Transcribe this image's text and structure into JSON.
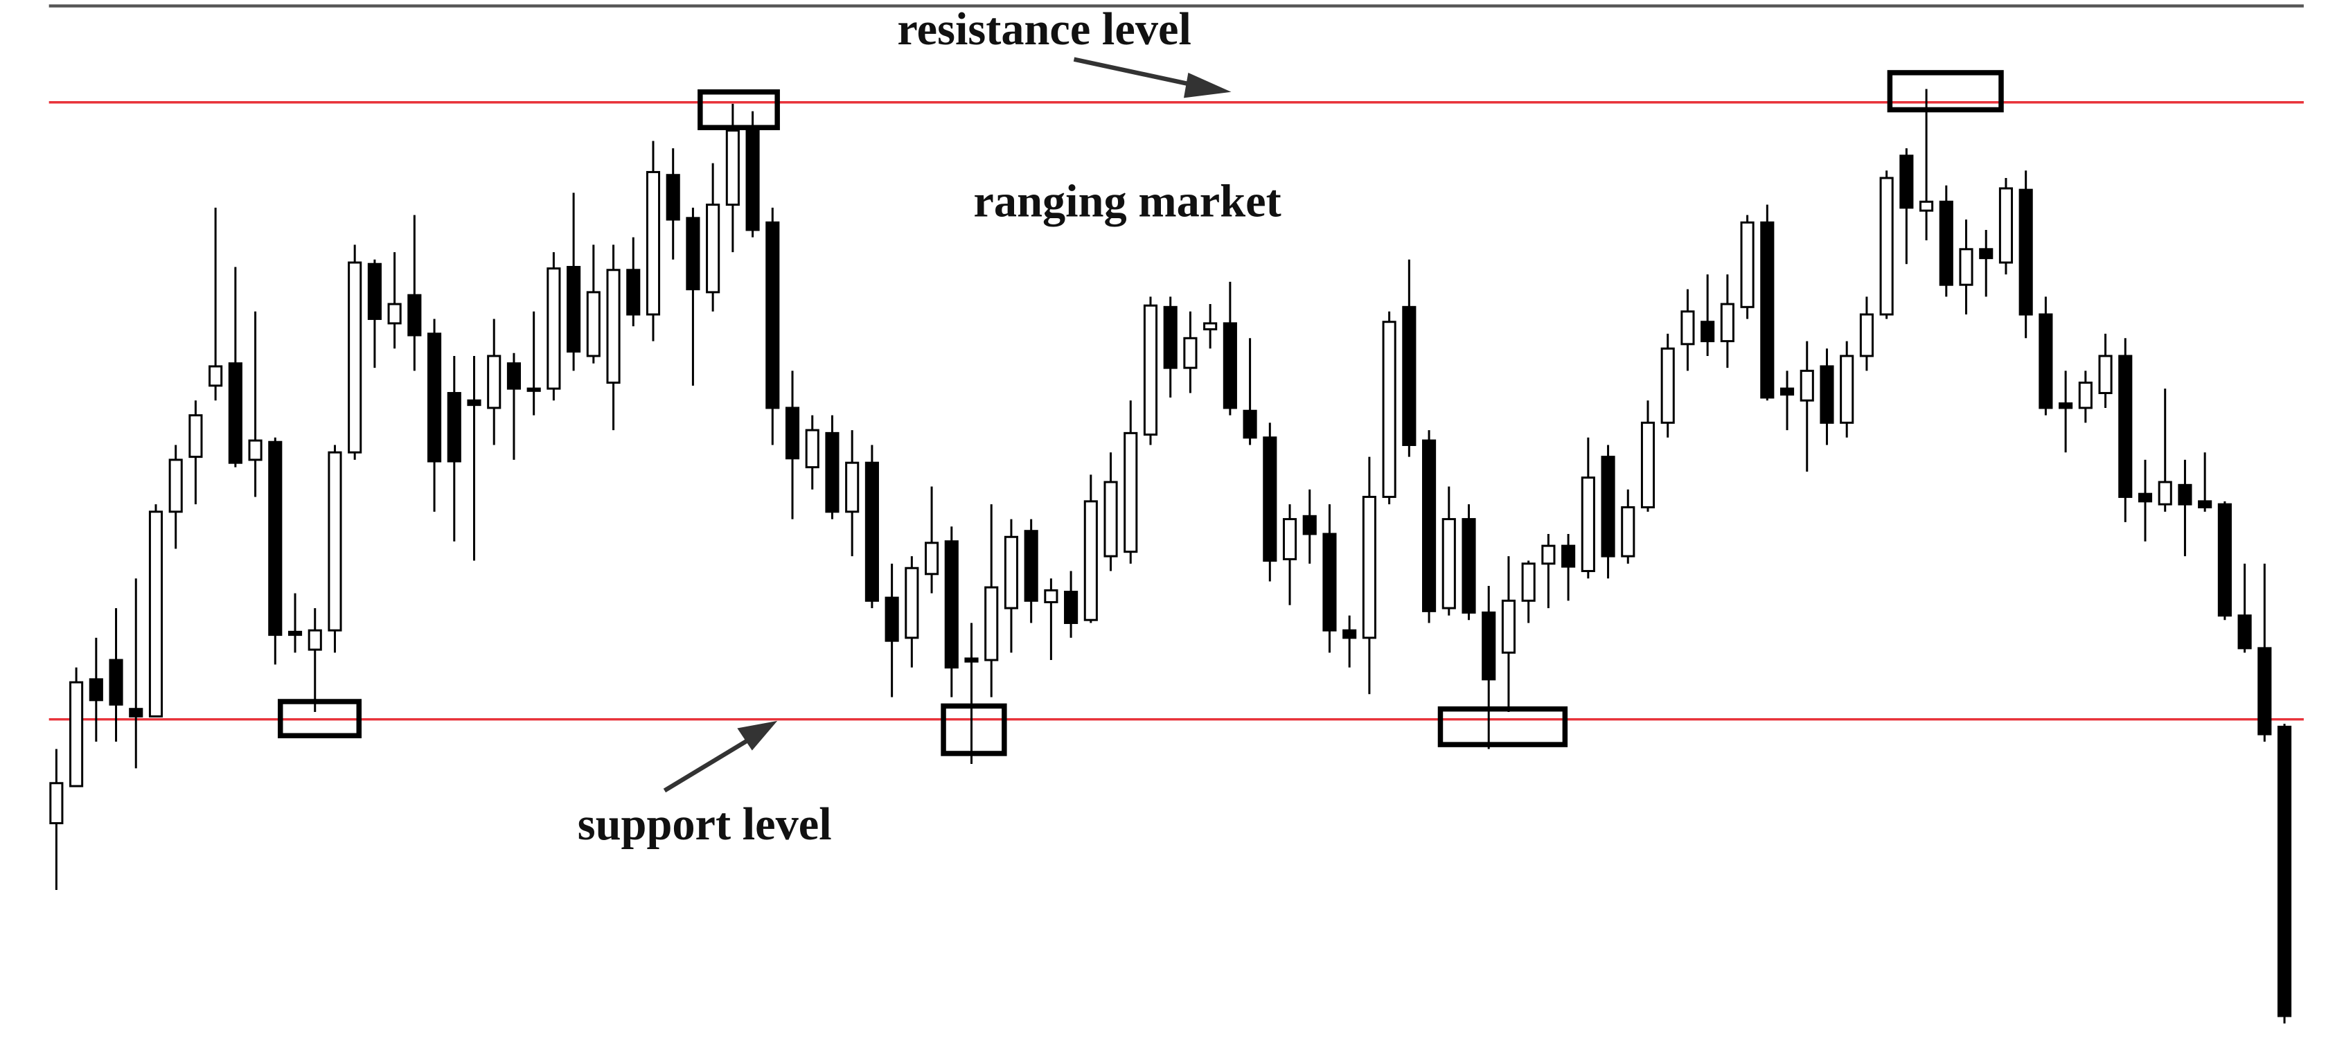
{
  "chart_data": {
    "type": "candlestick",
    "title": "ranging market",
    "ylim": [
      0,
      700
    ],
    "up_color": "#ffffff",
    "down_color": "#000000",
    "wick_color": "#000000",
    "lines": [
      {
        "label": "resistance level",
        "value": 631,
        "color": "#e8333a"
      },
      {
        "label": "support level",
        "value": 215,
        "color": "#e8333a"
      }
    ],
    "open": [
      145,
      170,
      242,
      255,
      222,
      217,
      355,
      392,
      440,
      455,
      390,
      402,
      274,
      262,
      275,
      395,
      522,
      482,
      501,
      475,
      435,
      430,
      425,
      455,
      438,
      438,
      520,
      460,
      442,
      518,
      488,
      582,
      553,
      503,
      562,
      613,
      550,
      425,
      385,
      408,
      355,
      388,
      297,
      270,
      313,
      335,
      256,
      255,
      290,
      342,
      294,
      301,
      282,
      325,
      328,
      407,
      493,
      452,
      478,
      482,
      423,
      405,
      323,
      352,
      340,
      275,
      270,
      365,
      493,
      403,
      290,
      350,
      287,
      260,
      295,
      320,
      332,
      315,
      392,
      325,
      358,
      415,
      468,
      483,
      470,
      493,
      550,
      438,
      430,
      453,
      415,
      460,
      488,
      595,
      558,
      564,
      508,
      532,
      523,
      572,
      488,
      428,
      425,
      435,
      460,
      367,
      360,
      373,
      362,
      360,
      285,
      263,
      210
    ],
    "close": [
      172,
      240,
      228,
      225,
      217,
      355,
      390,
      420,
      453,
      388,
      403,
      272,
      272,
      275,
      395,
      523,
      485,
      495,
      474,
      389,
      389,
      427,
      460,
      438,
      437,
      519,
      463,
      503,
      518,
      488,
      584,
      552,
      505,
      562,
      612,
      545,
      425,
      391,
      410,
      355,
      388,
      295,
      268,
      317,
      334,
      250,
      254,
      304,
      338,
      295,
      302,
      280,
      362,
      375,
      408,
      494,
      452,
      472,
      482,
      425,
      405,
      322,
      350,
      340,
      275,
      270,
      365,
      483,
      400,
      288,
      350,
      287,
      242,
      295,
      320,
      332,
      318,
      378,
      325,
      358,
      415,
      465,
      490,
      470,
      495,
      550,
      432,
      434,
      450,
      415,
      460,
      488,
      580,
      560,
      564,
      508,
      532,
      526,
      573,
      488,
      425,
      425,
      442,
      460,
      365,
      362,
      375,
      360,
      358,
      285,
      263,
      205,
      15
    ],
    "high": [
      195,
      250,
      270,
      290,
      310,
      360,
      400,
      430,
      560,
      520,
      490,
      405,
      300,
      290,
      400,
      535,
      525,
      530,
      555,
      485,
      460,
      460,
      485,
      462,
      490,
      530,
      570,
      535,
      535,
      540,
      605,
      600,
      560,
      590,
      630,
      625,
      560,
      450,
      420,
      420,
      410,
      400,
      320,
      325,
      372,
      345,
      280,
      360,
      350,
      350,
      310,
      315,
      380,
      395,
      430,
      500,
      500,
      490,
      495,
      510,
      472,
      415,
      360,
      370,
      360,
      285,
      392,
      490,
      525,
      410,
      372,
      360,
      305,
      325,
      322,
      340,
      340,
      405,
      400,
      370,
      430,
      475,
      505,
      515,
      515,
      555,
      562,
      450,
      470,
      465,
      470,
      500,
      585,
      600,
      640,
      575,
      552,
      545,
      580,
      585,
      500,
      450,
      450,
      475,
      472,
      390,
      438,
      390,
      395,
      362,
      320,
      320,
      212
    ],
    "low": [
      100,
      170,
      200,
      200,
      182,
      217,
      330,
      360,
      430,
      385,
      365,
      252,
      260,
      220,
      260,
      390,
      452,
      465,
      450,
      355,
      335,
      322,
      400,
      390,
      420,
      430,
      450,
      455,
      410,
      480,
      470,
      525,
      440,
      490,
      530,
      540,
      400,
      350,
      370,
      350,
      325,
      290,
      230,
      250,
      300,
      230,
      185,
      230,
      260,
      280,
      255,
      270,
      280,
      315,
      320,
      400,
      432,
      435,
      465,
      420,
      400,
      308,
      292,
      320,
      260,
      250,
      232,
      360,
      392,
      280,
      285,
      282,
      195,
      220,
      280,
      290,
      295,
      310,
      310,
      320,
      355,
      405,
      450,
      460,
      452,
      485,
      430,
      410,
      382,
      400,
      405,
      450,
      485,
      522,
      538,
      500,
      488,
      500,
      515,
      472,
      420,
      395,
      415,
      425,
      348,
      335,
      355,
      325,
      355,
      282,
      260,
      200,
      10
    ]
  }
}
